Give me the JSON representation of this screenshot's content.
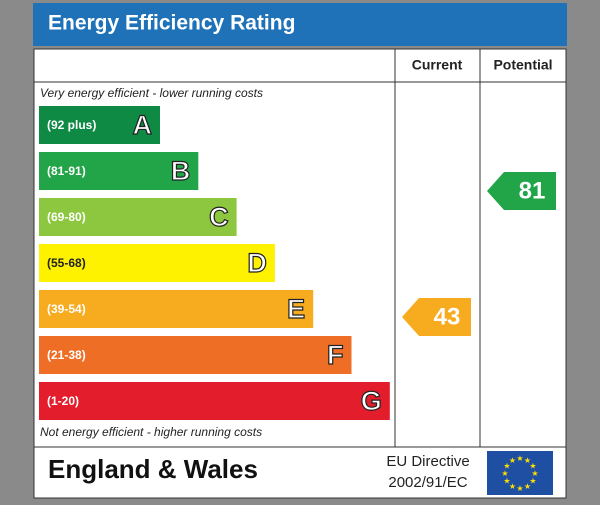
{
  "header": {
    "title": "Energy Efficiency Rating"
  },
  "columns": [
    "Current",
    "Potential"
  ],
  "top_note": "Very energy efficient - lower running costs",
  "bands": [
    {
      "range": "(92 plus)",
      "letter": "A",
      "color": "#0e8a45"
    },
    {
      "range": "(81-91)",
      "letter": "B",
      "color": "#22a448"
    },
    {
      "range": "(69-80)",
      "letter": "C",
      "color": "#8dc63f"
    },
    {
      "range": "(55-68)",
      "letter": "D",
      "color": "#fff200"
    },
    {
      "range": "(39-54)",
      "letter": "E",
      "color": "#f7ac1f"
    },
    {
      "range": "(21-38)",
      "letter": "F",
      "color": "#ee6e26"
    },
    {
      "range": "(1-20)",
      "letter": "G",
      "color": "#e31d2b"
    }
  ],
  "bottom_note": "Not energy efficient - higher running costs",
  "current": {
    "value": 43,
    "color": "#f7ac1f"
  },
  "potential": {
    "value": 81,
    "color": "#22a448"
  },
  "footer": {
    "region": "England & Wales",
    "directive": [
      "EU Directive",
      "2002/91/EC"
    ]
  }
}
